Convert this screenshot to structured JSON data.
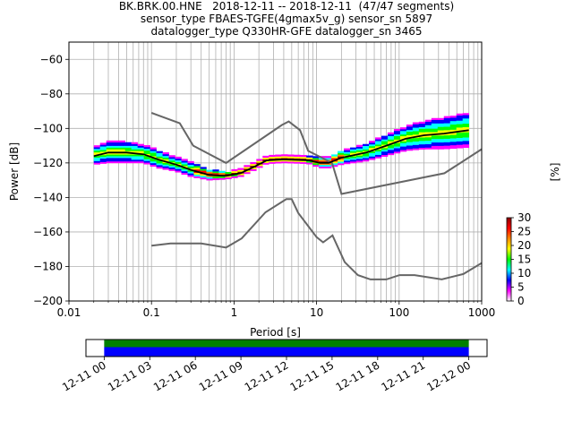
{
  "chart_data": {
    "type": "heatmap",
    "title_lines": [
      "BK.BRK.00.HNE   2018-12-11 -- 2018-12-11  (47/47 segments)",
      "sensor_type FBAES-TGFE(4gmax5v_g) sensor_sn 5897",
      "datalogger_type Q330HR-GFE datalogger_sn 3465"
    ],
    "xlabel": "Period [s]",
    "ylabel": "Power [dB]",
    "xscale": "log",
    "xlim": [
      0.01,
      1000
    ],
    "ylim": [
      -200,
      -50
    ],
    "x_ticks": [
      {
        "value": 0.01,
        "label": "0.01"
      },
      {
        "value": 0.1,
        "label": "0.1"
      },
      {
        "value": 1,
        "label": "1"
      },
      {
        "value": 10,
        "label": "10"
      },
      {
        "value": 100,
        "label": "100"
      },
      {
        "value": 1000,
        "label": "1000"
      }
    ],
    "y_ticks": [
      {
        "value": -60,
        "label": "−60"
      },
      {
        "value": -80,
        "label": "−80"
      },
      {
        "value": -100,
        "label": "−100"
      },
      {
        "value": -120,
        "label": "−120"
      },
      {
        "value": -140,
        "label": "−140"
      },
      {
        "value": -160,
        "label": "−160"
      },
      {
        "value": -180,
        "label": "−180"
      },
      {
        "value": -200,
        "label": "−200"
      }
    ],
    "grid": true,
    "colorbar": {
      "label": "[%]",
      "range": [
        0,
        30
      ],
      "ticks": [
        {
          "value": 0,
          "label": "0"
        },
        {
          "value": 5,
          "label": "5"
        },
        {
          "value": 10,
          "label": "10"
        },
        {
          "value": 15,
          "label": "15"
        },
        {
          "value": 20,
          "label": "20"
        },
        {
          "value": 25,
          "label": "25"
        },
        {
          "value": 30,
          "label": "30"
        }
      ],
      "colors": [
        "#ffffff",
        "#ff00ff",
        "#0000ff",
        "#00ffff",
        "#00ff00",
        "#ffff00",
        "#ff8800",
        "#ff0000",
        "#880000"
      ]
    },
    "noise_models": [
      {
        "name": "high",
        "color": "#666666",
        "points": [
          [
            0.1,
            -91
          ],
          [
            0.22,
            -97
          ],
          [
            0.32,
            -110
          ],
          [
            0.8,
            -120
          ],
          [
            3.8,
            -98
          ],
          [
            4.6,
            -96
          ],
          [
            6.3,
            -101
          ],
          [
            7.9,
            -113
          ],
          [
            15.4,
            -120
          ],
          [
            20,
            -138
          ],
          [
            354,
            -126
          ],
          [
            1000,
            -112
          ]
        ]
      },
      {
        "name": "low",
        "color": "#666666",
        "points": [
          [
            0.1,
            -168
          ],
          [
            0.17,
            -166.7
          ],
          [
            0.4,
            -166.7
          ],
          [
            0.8,
            -169
          ],
          [
            1.24,
            -163.7
          ],
          [
            2.4,
            -148.6
          ],
          [
            4.3,
            -141
          ],
          [
            5,
            -141
          ],
          [
            6,
            -149
          ],
          [
            10,
            -163
          ],
          [
            12,
            -166
          ],
          [
            15.6,
            -162
          ],
          [
            21.9,
            -177.5
          ],
          [
            31.6,
            -185
          ],
          [
            45,
            -187.5
          ],
          [
            70,
            -187.5
          ],
          [
            101,
            -185
          ],
          [
            154,
            -185
          ],
          [
            328,
            -187.5
          ],
          [
            600,
            -184.4
          ],
          [
            1000,
            -178
          ]
        ]
      }
    ],
    "median": {
      "color": "#000000",
      "points": [
        [
          0.02,
          -116
        ],
        [
          0.03,
          -114
        ],
        [
          0.05,
          -114
        ],
        [
          0.08,
          -115
        ],
        [
          0.12,
          -118
        ],
        [
          0.2,
          -121
        ],
        [
          0.3,
          -124
        ],
        [
          0.5,
          -127
        ],
        [
          0.8,
          -127.5
        ],
        [
          1.2,
          -126
        ],
        [
          1.8,
          -122
        ],
        [
          2.5,
          -118.5
        ],
        [
          4,
          -118
        ],
        [
          8,
          -118.5
        ],
        [
          11,
          -120
        ],
        [
          14,
          -120
        ],
        [
          20,
          -117
        ],
        [
          40,
          -114
        ],
        [
          70,
          -110
        ],
        [
          120,
          -106
        ],
        [
          200,
          -104
        ],
        [
          350,
          -103
        ],
        [
          700,
          -101
        ]
      ]
    },
    "psd_band": {
      "points": [
        [
          0.02,
          -116,
          5
        ],
        [
          0.03,
          -114,
          6
        ],
        [
          0.05,
          -114,
          6
        ],
        [
          0.08,
          -115,
          5
        ],
        [
          0.12,
          -118,
          5
        ],
        [
          0.2,
          -121,
          4
        ],
        [
          0.3,
          -124,
          4
        ],
        [
          0.5,
          -127,
          3
        ],
        [
          0.8,
          -127.5,
          2
        ],
        [
          1.2,
          -126,
          2
        ],
        [
          1.8,
          -122,
          2
        ],
        [
          2.5,
          -118.5,
          2
        ],
        [
          4,
          -118,
          2
        ],
        [
          8,
          -118.5,
          2
        ],
        [
          11,
          -120,
          3
        ],
        [
          14,
          -120,
          3
        ],
        [
          20,
          -117,
          4
        ],
        [
          40,
          -114,
          5
        ],
        [
          70,
          -110,
          6
        ],
        [
          120,
          -106,
          7
        ],
        [
          200,
          -104,
          8
        ],
        [
          350,
          -103,
          9
        ],
        [
          700,
          -101,
          10
        ]
      ]
    },
    "timeline": {
      "ticks": [
        {
          "value": 0,
          "label": "12-11 00"
        },
        {
          "value": 3,
          "label": "12-11 03"
        },
        {
          "value": 6,
          "label": "12-11 06"
        },
        {
          "value": 9,
          "label": "12-11 09"
        },
        {
          "value": 12,
          "label": "12-11 12"
        },
        {
          "value": 15,
          "label": "12-11 15"
        },
        {
          "value": 18,
          "label": "12-11 18"
        },
        {
          "value": 21,
          "label": "12-11 21"
        },
        {
          "value": 24,
          "label": "12-12 00"
        }
      ],
      "range_hours": [
        -1.2,
        25.2
      ],
      "coverage_hours": [
        0,
        24
      ],
      "colors": [
        "#008000",
        "#0000ff"
      ]
    }
  }
}
